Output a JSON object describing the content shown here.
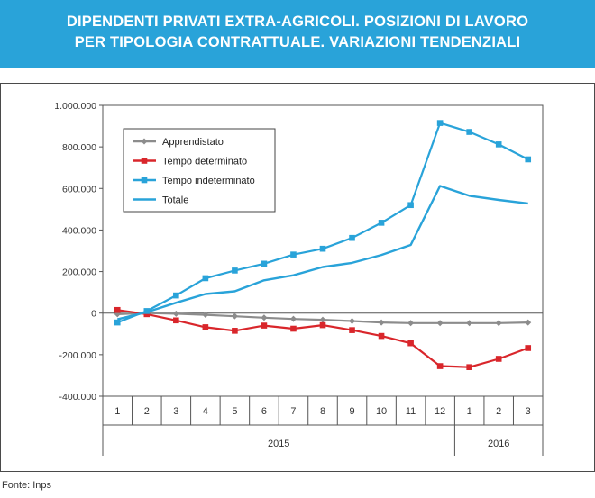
{
  "header": {
    "title_line1": "DIPENDENTI PRIVATI EXTRA-AGRICOLI. POSIZIONI DI LAVORO",
    "title_line2": "PER TIPOLOGIA CONTRATTUALE. VARIAZIONI TENDENZIALI"
  },
  "source": "Fonte: Inps",
  "chart_data": {
    "type": "line",
    "title": "DIPENDENTI PRIVATI EXTRA-AGRICOLI. POSIZIONI DI LAVORO PER TIPOLOGIA CONTRATTUALE. VARIAZIONI TENDENZIALI",
    "categories": [
      "1",
      "2",
      "3",
      "4",
      "5",
      "6",
      "7",
      "8",
      "9",
      "10",
      "11",
      "12",
      "1",
      "2",
      "3"
    ],
    "year_groups": [
      {
        "label": "2015",
        "count": 12
      },
      {
        "label": "2016",
        "count": 3
      }
    ],
    "ylim": [
      -400000,
      1000000
    ],
    "yticks": [
      -400000,
      -200000,
      0,
      200000,
      400000,
      600000,
      800000,
      1000000
    ],
    "ytick_labels": [
      "-400.000",
      "-200.000",
      "0",
      "200.000",
      "400.000",
      "600.000",
      "800.000",
      "1.000.000"
    ],
    "legend_position": "top-left",
    "grid": false,
    "series": [
      {
        "name": "Apprendistato",
        "color": "#8c8c8c",
        "marker": "diamond",
        "values": [
          -5000,
          0,
          -3000,
          -8000,
          -15000,
          -22000,
          -28000,
          -32000,
          -38000,
          -45000,
          -48000,
          -48000,
          -48000,
          -48000,
          -45000
        ]
      },
      {
        "name": "Tempo determinato",
        "color": "#d9262b",
        "marker": "square",
        "values": [
          15000,
          -5000,
          -35000,
          -68000,
          -85000,
          -60000,
          -75000,
          -58000,
          -82000,
          -110000,
          -145000,
          -255000,
          -260000,
          -220000,
          -168000
        ]
      },
      {
        "name": "Tempo indeterminato",
        "color": "#29a3d9",
        "marker": "square",
        "values": [
          -45000,
          10000,
          85000,
          168000,
          205000,
          238000,
          282000,
          310000,
          362000,
          435000,
          520000,
          915000,
          872000,
          812000,
          740000
        ]
      },
      {
        "name": "Totale",
        "color": "#29a3d9",
        "marker": "none",
        "values": [
          -30000,
          5000,
          50000,
          92000,
          105000,
          158000,
          182000,
          222000,
          242000,
          280000,
          328000,
          612000,
          565000,
          545000,
          528000
        ]
      }
    ]
  }
}
